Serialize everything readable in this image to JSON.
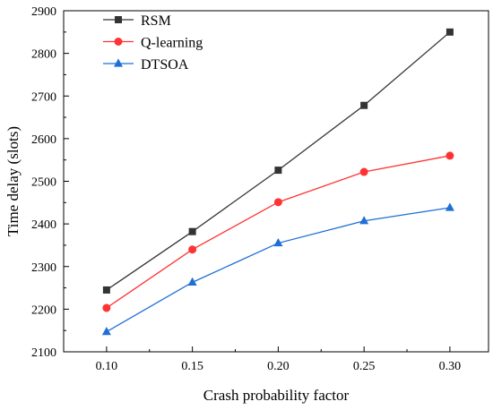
{
  "chart_data": {
    "type": "line",
    "title": "",
    "xlabel": "Crash probability factor",
    "ylabel": "Time delay (slots)",
    "x": [
      0.1,
      0.15,
      0.2,
      0.25,
      0.3
    ],
    "x_tick_labels": [
      "0.10",
      "0.15",
      "0.20",
      "0.25",
      "0.30"
    ],
    "xlim": [
      0.075,
      0.3225
    ],
    "ylim": [
      2100,
      2900
    ],
    "y_ticks": [
      2100,
      2200,
      2300,
      2400,
      2500,
      2600,
      2700,
      2800,
      2900
    ],
    "y_tick_labels": [
      "2100",
      "2200",
      "2300",
      "2400",
      "2500",
      "2600",
      "2700",
      "2800",
      "2900"
    ],
    "grid": false,
    "legend_position": "top-left",
    "series": [
      {
        "name": "RSM",
        "values": [
          2245,
          2382,
          2526,
          2678,
          2850
        ],
        "color": "#333333",
        "marker": "square"
      },
      {
        "name": "Q-learning",
        "values": [
          2203,
          2340,
          2451,
          2522,
          2560
        ],
        "color": "#ff3333",
        "marker": "circle"
      },
      {
        "name": "DTSOA",
        "values": [
          2147,
          2263,
          2355,
          2407,
          2438
        ],
        "color": "#1f6fd6",
        "marker": "triangle"
      }
    ]
  }
}
